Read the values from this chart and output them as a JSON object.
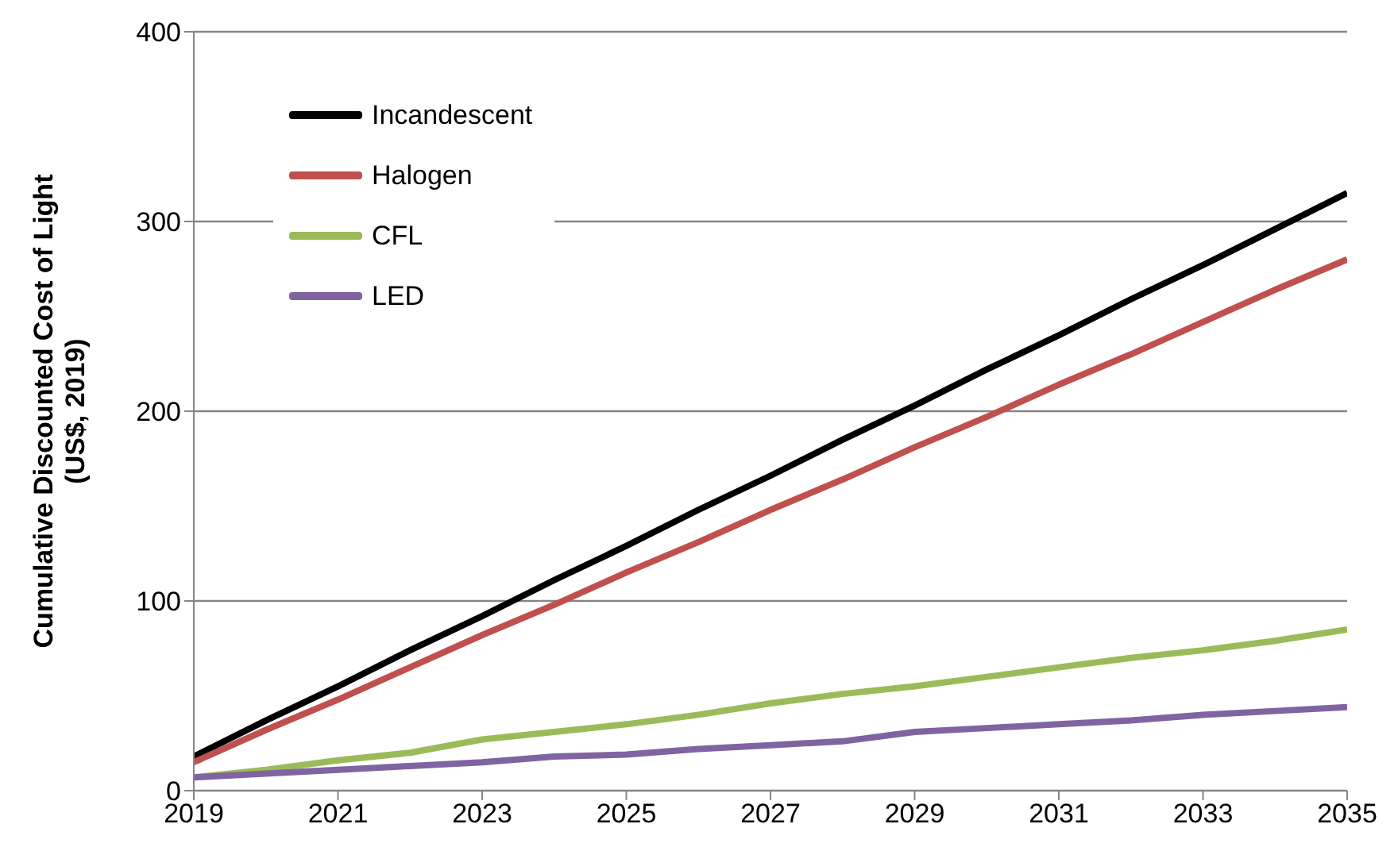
{
  "chart_data": {
    "type": "line",
    "ylabel": "Cumulative Discounted Cost of Light\n(US$, 2019)",
    "x": [
      2019,
      2020,
      2021,
      2022,
      2023,
      2024,
      2025,
      2026,
      2027,
      2028,
      2029,
      2030,
      2031,
      2032,
      2033,
      2034,
      2035
    ],
    "series": [
      {
        "name": "Incandescent",
        "color": "#000000",
        "values": [
          18,
          37,
          55,
          74,
          92,
          111,
          129,
          148,
          166,
          185,
          203,
          222,
          240,
          259,
          277,
          296,
          315
        ]
      },
      {
        "name": "Halogen",
        "color": "#c0504d",
        "values": [
          15,
          32,
          48,
          65,
          82,
          98,
          115,
          131,
          148,
          164,
          181,
          197,
          214,
          230,
          247,
          264,
          280
        ]
      },
      {
        "name": "CFL",
        "color": "#9bbb59",
        "values": [
          7,
          11,
          16,
          20,
          27,
          31,
          35,
          40,
          46,
          51,
          55,
          60,
          65,
          70,
          74,
          79,
          85
        ]
      },
      {
        "name": "LED",
        "color": "#8064a2",
        "values": [
          7,
          9,
          11,
          13,
          15,
          18,
          19,
          22,
          24,
          26,
          31,
          33,
          35,
          37,
          40,
          42,
          44
        ]
      }
    ],
    "xlim": [
      2019,
      2035
    ],
    "xticks": [
      2019,
      2021,
      2023,
      2025,
      2027,
      2029,
      2031,
      2033,
      2035
    ],
    "ylim": [
      0,
      400
    ],
    "yticks": [
      0,
      100,
      200,
      300,
      400
    ],
    "grid": "y",
    "legend": "top left",
    "marker": "none",
    "line_style": "solid"
  }
}
